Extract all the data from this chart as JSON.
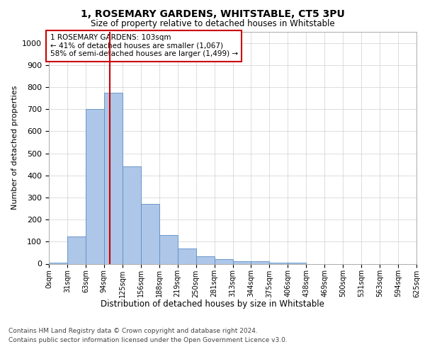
{
  "title1": "1, ROSEMARY GARDENS, WHITSTABLE, CT5 3PU",
  "title2": "Size of property relative to detached houses in Whitstable",
  "xlabel": "Distribution of detached houses by size in Whitstable",
  "ylabel": "Number of detached properties",
  "bar_values": [
    5,
    125,
    700,
    775,
    440,
    270,
    130,
    70,
    35,
    20,
    10,
    10,
    5,
    5,
    0,
    0,
    0,
    0,
    0,
    0
  ],
  "bin_edges": [
    0,
    31.25,
    62.5,
    93.75,
    125,
    156.25,
    187.5,
    218.75,
    250,
    281.25,
    312.5,
    343.75,
    375,
    406.25,
    437.5,
    468.75,
    500,
    531.25,
    562.5,
    593.75,
    625
  ],
  "tick_labels": [
    "0sqm",
    "31sqm",
    "63sqm",
    "94sqm",
    "125sqm",
    "156sqm",
    "188sqm",
    "219sqm",
    "250sqm",
    "281sqm",
    "313sqm",
    "344sqm",
    "375sqm",
    "406sqm",
    "438sqm",
    "469sqm",
    "500sqm",
    "531sqm",
    "563sqm",
    "594sqm",
    "625sqm"
  ],
  "bar_color": "#aec6e8",
  "bar_edge_color": "#5a8fc3",
  "property_line_x": 103,
  "property_line_color": "#cc0000",
  "annotation_text": "1 ROSEMARY GARDENS: 103sqm\n← 41% of detached houses are smaller (1,067)\n58% of semi-detached houses are larger (1,499) →",
  "annotation_box_color": "#ffffff",
  "annotation_box_edge": "#cc0000",
  "ylim": [
    0,
    1050
  ],
  "yticks": [
    0,
    100,
    200,
    300,
    400,
    500,
    600,
    700,
    800,
    900,
    1000
  ],
  "footer1": "Contains HM Land Registry data © Crown copyright and database right 2024.",
  "footer2": "Contains public sector information licensed under the Open Government Licence v3.0.",
  "bg_color": "#ffffff",
  "grid_color": "#d0d0d0"
}
